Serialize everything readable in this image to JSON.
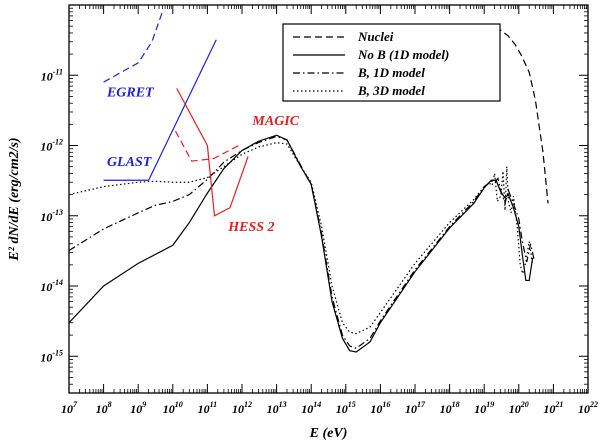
{
  "chart_data": {
    "type": "line",
    "xlabel": "E (eV)",
    "ylabel": "E² dN/dE (erg/cm2/s)",
    "xscale": "log",
    "yscale": "log",
    "xlim": [
      10000000.0,
      1e+22
    ],
    "ylim": [
      3e-16,
      1e-10
    ],
    "grid": false,
    "legend_position": "top-right",
    "x_tick_labels": [
      {
        "mant": "10",
        "exp": "7"
      },
      {
        "mant": "10",
        "exp": "8"
      },
      {
        "mant": "10",
        "exp": "9"
      },
      {
        "mant": "10",
        "exp": "10"
      },
      {
        "mant": "10",
        "exp": "11"
      },
      {
        "mant": "10",
        "exp": "12"
      },
      {
        "mant": "10",
        "exp": "13"
      },
      {
        "mant": "10",
        "exp": "14"
      },
      {
        "mant": "10",
        "exp": "15"
      },
      {
        "mant": "10",
        "exp": "16"
      },
      {
        "mant": "10",
        "exp": "17"
      },
      {
        "mant": "10",
        "exp": "18"
      },
      {
        "mant": "10",
        "exp": "19"
      },
      {
        "mant": "10",
        "exp": "20"
      },
      {
        "mant": "10",
        "exp": "21"
      },
      {
        "mant": "10",
        "exp": "22"
      }
    ],
    "y_tick_labels": [
      {
        "mant": "10",
        "exp": "-11"
      },
      {
        "mant": "10",
        "exp": "-12"
      },
      {
        "mant": "10",
        "exp": "-13"
      },
      {
        "mant": "10",
        "exp": "-14"
      },
      {
        "mant": "10",
        "exp": "-15"
      }
    ],
    "series": [
      {
        "name": "Nuclei",
        "dash": "dashed",
        "color": "#000000",
        "x": [
          2e+19,
          3e+19,
          5e+19,
          8e+19,
          1.2e+20,
          2e+20,
          3e+20,
          5e+20,
          7e+20
        ],
        "y": [
          4.6e-11,
          4.4e-11,
          3.6e-11,
          2.7e-11,
          1.9e-11,
          1.1e-11,
          4.5e-12,
          8e-13,
          1.5e-13
        ]
      },
      {
        "name": "No B (1D model)",
        "dash": "solid",
        "color": "#000000",
        "x": [
          10000000.0,
          100000000.0,
          1000000000.0,
          10000000000.0,
          30000000000.0,
          100000000000.0,
          300000000000.0,
          1000000000000.0,
          3000000000000.0,
          10000000000000.0,
          20000000000000.0,
          50000000000000.0,
          100000000000000.0,
          200000000000000.0,
          400000000000000.0,
          800000000000000.0,
          1300000000000000.0,
          2000000000000000.0,
          5000000000000000.0,
          1e+16,
          1e+17,
          1e+18,
          5e+18,
          1e+19,
          1.6e+19,
          2.2e+19,
          3e+19,
          4e+19,
          5e+19,
          7e+19,
          1e+20,
          1.3e+20,
          1.6e+20,
          2e+20,
          2.5e+20
        ],
        "y": [
          3e-15,
          1e-14,
          2.1e-14,
          3.8e-14,
          8e-14,
          2.1e-13,
          4.7e-13,
          8.5e-13,
          1.15e-12,
          1.4e-12,
          1.2e-12,
          5e-13,
          2.8e-13,
          5e-14,
          6e-15,
          1.8e-15,
          1.2e-15,
          1.15e-15,
          1.6e-15,
          3e-15,
          1.6e-14,
          6.7e-14,
          1.5e-13,
          2.5e-13,
          3.2e-13,
          3.2e-13,
          2.2e-13,
          1.8e-13,
          2e-13,
          1.3e-13,
          7e-14,
          2.5e-14,
          1.2e-14,
          1.2e-14,
          2.5e-14
        ]
      },
      {
        "name": "B, 1D model",
        "dash": "dashdot",
        "color": "#000000",
        "x": [
          10000000.0,
          100000000.0,
          1000000000.0,
          3000000000.0,
          10000000000.0,
          30000000000.0,
          100000000000.0,
          300000000000.0,
          1000000000000.0,
          3000000000000.0,
          10000000000000.0,
          20000000000000.0,
          50000000000000.0,
          100000000000000.0,
          200000000000000.0,
          400000000000000.0,
          800000000000000.0,
          1300000000000000.0,
          2000000000000000.0,
          5000000000000000.0,
          1e+16,
          1e+17,
          1e+18,
          5e+18,
          1e+19,
          1.6e+19,
          2e+19,
          2.5e+19,
          3e+19,
          4e+19,
          5e+19,
          7e+19,
          1e+20,
          1.3e+20,
          1.7e+20,
          2.2e+20,
          2.8e+20
        ],
        "y": [
          3.2e-14,
          6.5e-14,
          1.1e-13,
          1.4e-13,
          1.6e-13,
          2e-13,
          3.3e-13,
          5.8e-13,
          8.5e-13,
          1.1e-12,
          1.35e-12,
          1.2e-12,
          5.2e-13,
          2.8e-13,
          5.5e-14,
          7e-15,
          2e-15,
          1.4e-15,
          1.3e-15,
          1.8e-15,
          3.2e-15,
          1.7e-14,
          7e-14,
          1.6e-13,
          2.6e-13,
          3.1e-13,
          3e-13,
          3.4e-13,
          2.3e-13,
          1.5e-13,
          2.3e-13,
          1.5e-13,
          9e-14,
          4e-14,
          2.2e-14,
          4e-14,
          2.3e-14
        ]
      },
      {
        "name": "B, 3D model",
        "dash": "dotted",
        "color": "#000000",
        "x": [
          10000000.0,
          100000000.0,
          1000000000.0,
          3000000000.0,
          10000000000.0,
          30000000000.0,
          100000000000.0,
          300000000000.0,
          1000000000000.0,
          3000000000000.0,
          10000000000000.0,
          20000000000000.0,
          50000000000000.0,
          100000000000000.0,
          200000000000000.0,
          400000000000000.0,
          800000000000000.0,
          1300000000000000.0,
          2000000000000000.0,
          5000000000000000.0,
          1e+16,
          1e+17,
          1e+18,
          5e+18,
          1e+19,
          1.4e+19,
          1.7e+19,
          2e+19,
          2.4e+19,
          3e+19,
          3.5e+19,
          4e+19,
          4.5e+19,
          5e+19,
          6e+19,
          7e+19,
          9e+19,
          1.1e+20,
          1.3e+20,
          1.6e+20,
          2e+20,
          2.5e+20
        ],
        "y": [
          2e-13,
          2.6e-13,
          3e-13,
          3.1e-13,
          3e-13,
          3e-13,
          3.5e-13,
          5e-13,
          7.5e-13,
          9.5e-13,
          1.1e-12,
          1.05e-12,
          5e-13,
          3e-13,
          7e-14,
          1e-14,
          3e-15,
          2.2e-15,
          2.1e-15,
          2.6e-15,
          4.2e-15,
          2.1e-14,
          8e-14,
          1.7e-13,
          2.6e-13,
          2.9e-13,
          2.7e-13,
          4e-13,
          1.6e-13,
          1.9e-13,
          4.3e-13,
          1.2e-13,
          5e-13,
          1.6e-13,
          1.1e-13,
          1.9e-13,
          7e-14,
          2e-14,
          1.5e-14,
          2.2e-14,
          4.3e-14,
          2e-14
        ]
      }
    ],
    "instruments": [
      {
        "name": "EGRET",
        "color": "#2222cc",
        "segments": [
          {
            "dash": "dashed",
            "x": [
              100000000.0,
              1000000000.0,
              2500000000.0,
              5000000000.0
            ],
            "y": [
              8e-12,
              1.5e-11,
              3e-11,
              8e-11
            ]
          }
        ],
        "label_at": [
          125000000.0,
          5e-12
        ]
      },
      {
        "name": "GLAST",
        "color": "#2222cc",
        "segments": [
          {
            "dash": "solid",
            "x": [
              100000000.0,
              2000000000.0,
              180000000000.0
            ],
            "y": [
              3.2e-13,
              3.2e-13,
              3.2e-11
            ]
          }
        ],
        "label_at": [
          125000000.0,
          5.1e-13
        ]
      },
      {
        "name": "MAGIC",
        "color": "#dd2222",
        "segments": [
          {
            "dash": "dashed",
            "x": [
              12000000000.0,
              35000000000.0,
              150000000000.0,
              800000000000.0
            ],
            "y": [
              1.6e-12,
              6e-13,
              6.5e-13,
              1e-12
            ]
          }
        ],
        "label_at": [
          2000000000000.0,
          1.95e-12
        ]
      },
      {
        "name": "HESS 2",
        "color": "#dd2222",
        "segments": [
          {
            "dash": "solid",
            "x": [
              13000000000.0,
              100000000000.0,
              160000000000.0,
              450000000000.0,
              1500000000000.0
            ],
            "y": [
              6.5e-12,
              1e-12,
              1e-13,
              1.3e-13,
              7e-13
            ]
          }
        ],
        "label_at": [
          400000000000.0,
          6.1e-14
        ]
      }
    ]
  }
}
